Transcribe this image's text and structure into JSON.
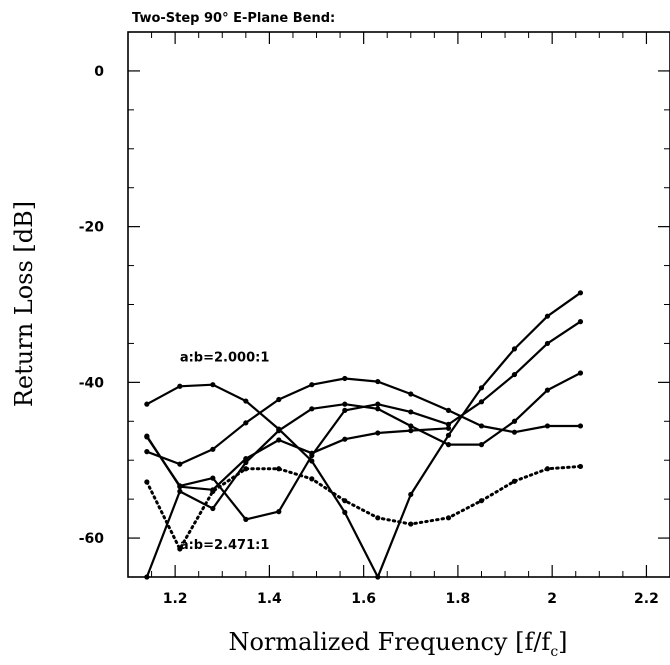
{
  "chart_data": {
    "type": "line",
    "title": "Two-Step 90° E-Plane Bend:",
    "xlabel": "Normalized Frequency [f/f",
    "xlabel_sub": "c",
    "xlabel_end": "]",
    "ylabel": "Return Loss [dB]",
    "xlim": [
      1.1,
      2.25
    ],
    "ylim": [
      -65,
      5
    ],
    "x_ticks": [
      1.2,
      1.4,
      1.6,
      1.8,
      2.0,
      2.2
    ],
    "x_tick_labels": [
      "1.2",
      "1.4",
      "1.6",
      "1.8",
      "2",
      "2.2"
    ],
    "y_ticks": [
      0,
      -20,
      -40,
      -60
    ],
    "y_tick_labels": [
      "0",
      "-20",
      "-40",
      "-60"
    ],
    "grid": false,
    "annotations": [
      {
        "text": "a:b=2.000:1",
        "x": 1.21,
        "y": -37.3
      },
      {
        "text": "a:b=2.471:1",
        "x": 1.21,
        "y": -61.4
      }
    ],
    "series": [
      {
        "style": "solid",
        "x": [
          1.14,
          1.21,
          1.28,
          1.35,
          1.42,
          1.49,
          1.56,
          1.63,
          1.7,
          1.78,
          1.85,
          1.92,
          1.99,
          2.06
        ],
        "y": [
          -42.8,
          -40.5,
          -40.3,
          -42.4,
          -46.0,
          -50.1,
          -56.7,
          -65.0,
          -54.4,
          -46.8,
          -40.7,
          -35.7,
          -31.5,
          -28.5
        ]
      },
      {
        "style": "solid",
        "x": [
          1.14,
          1.21,
          1.28,
          1.35,
          1.42,
          1.49,
          1.56,
          1.63,
          1.7,
          1.78,
          1.85,
          1.92,
          1.99,
          2.06
        ],
        "y": [
          -47.0,
          -53.3,
          -52.3,
          -57.6,
          -56.6,
          -49.4,
          -43.6,
          -42.8,
          -43.8,
          -45.4,
          -42.5,
          -39.0,
          -35.0,
          -32.2
        ]
      },
      {
        "style": "solid",
        "x": [
          1.14,
          1.21,
          1.28,
          1.35,
          1.42,
          1.49,
          1.56,
          1.63,
          1.7,
          1.78,
          1.85,
          1.92,
          1.99,
          2.06
        ],
        "y": [
          -48.9,
          -50.5,
          -48.6,
          -45.2,
          -42.2,
          -40.3,
          -39.5,
          -39.9,
          -41.5,
          -43.6,
          -45.6,
          -46.4,
          -45.6,
          -45.6
        ]
      },
      {
        "style": "solid",
        "x": [
          1.14,
          1.21,
          1.28,
          1.35,
          1.42,
          1.49,
          1.56,
          1.63,
          1.7,
          1.78,
          1.85,
          1.92,
          1.99,
          2.06
        ],
        "y": [
          -65.0,
          -54.0,
          -56.2,
          -50.3,
          -46.2,
          -43.4,
          -42.8,
          -43.4,
          -45.6,
          -48.0,
          -48.0,
          -45.0,
          -41.0,
          -38.8
        ]
      },
      {
        "style": "solid",
        "x": [
          1.14,
          1.21,
          1.28,
          1.35,
          1.42,
          1.49,
          1.56,
          1.63,
          1.7,
          1.78
        ],
        "y": [
          -46.9,
          -53.4,
          -53.8,
          -49.8,
          -47.4,
          -49.1,
          -47.3,
          -46.5,
          -46.2,
          -45.9
        ]
      },
      {
        "style": "dotted",
        "x": [
          1.14,
          1.21,
          1.28,
          1.35,
          1.42,
          1.49,
          1.56,
          1.63,
          1.7,
          1.78,
          1.85,
          1.92,
          1.99,
          2.06
        ],
        "y": [
          -52.8,
          -61.4,
          -54.0,
          -51.1,
          -51.1,
          -52.4,
          -55.2,
          -57.4,
          -58.2,
          -57.4,
          -55.2,
          -52.7,
          -51.1,
          -50.8
        ]
      }
    ]
  }
}
